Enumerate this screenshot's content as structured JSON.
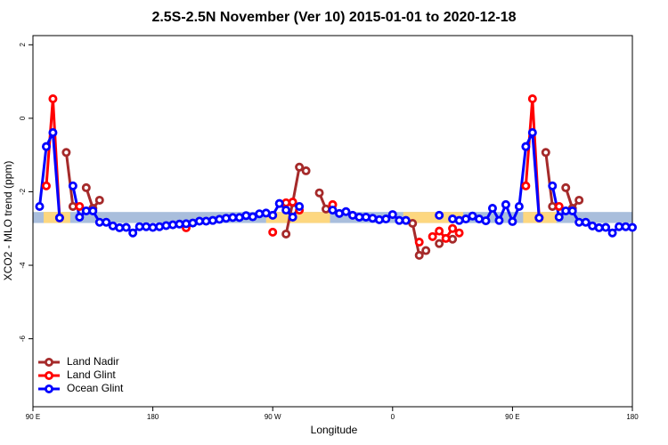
{
  "chart_data": {
    "type": "line",
    "title": "2.5S-2.5N November (Ver 10)   2015-01-01 to 2020-12-18",
    "x_label": "Longitude",
    "y_label": "XCO2 - MLO trend (ppm)",
    "xlim": [
      90,
      540
    ],
    "ylim": [
      -7.85,
      2.25
    ],
    "xticks": [
      {
        "value": 90,
        "label": "90 E"
      },
      180,
      {
        "value": 270,
        "label": "90 W"
      },
      {
        "value": 360,
        "label": "0"
      },
      {
        "value": 450,
        "label": "90 E"
      },
      {
        "value": 540,
        "label": "180"
      }
    ],
    "yticks": [
      2,
      0,
      -2,
      -4,
      -6
    ],
    "legend": "bottom-left",
    "band": {
      "range": [
        -2.55,
        -2.85
      ],
      "color": "#a9bedc",
      "highlight_color": "#fdd77f",
      "highlights": [
        [
          98,
          118
        ],
        [
          265,
          313
        ],
        [
          368,
          413
        ],
        [
          458,
          483
        ]
      ]
    },
    "x": [
      95,
      100,
      105,
      110,
      115,
      120,
      125,
      130,
      135,
      140,
      145,
      150,
      155,
      160,
      165,
      170,
      175,
      180,
      185,
      190,
      195,
      200,
      205,
      210,
      215,
      220,
      225,
      230,
      235,
      240,
      245,
      250,
      255,
      260,
      265,
      270,
      275,
      280,
      285,
      290,
      295,
      300,
      305,
      310,
      315,
      320,
      325,
      330,
      335,
      340,
      345,
      350,
      355,
      360,
      365,
      370,
      375,
      380,
      385,
      390,
      395,
      400,
      405,
      410,
      415,
      420,
      425,
      430,
      435,
      440,
      445,
      450,
      455,
      460,
      465,
      470,
      475,
      480,
      485,
      490,
      495,
      500,
      505,
      510,
      515,
      520,
      525,
      530,
      535,
      540
    ],
    "series": [
      {
        "name": "Land Nadir",
        "color": "#a52a2a",
        "values": [
          null,
          null,
          null,
          null,
          -0.93,
          -2.4,
          null,
          -1.89,
          -2.45,
          -2.23,
          null,
          null,
          null,
          null,
          null,
          null,
          null,
          null,
          null,
          null,
          null,
          null,
          null,
          null,
          null,
          null,
          null,
          null,
          null,
          null,
          null,
          null,
          null,
          null,
          null,
          null,
          null,
          -3.15,
          -2.3,
          -1.33,
          -1.43,
          null,
          -2.03,
          -2.47,
          null,
          null,
          null,
          null,
          null,
          null,
          null,
          null,
          null,
          null,
          null,
          null,
          -2.86,
          -3.73,
          -3.6,
          null,
          -3.41,
          null,
          -3.29,
          null,
          null,
          null,
          null,
          null,
          null,
          null,
          null,
          null,
          null,
          null,
          null,
          null,
          -0.93,
          -2.4,
          null,
          -1.89,
          -2.45,
          -2.23,
          null,
          null,
          null,
          null,
          null,
          null,
          null,
          null
        ]
      },
      {
        "name": "Land Glint",
        "color": "#ff0000",
        "values": [
          null,
          -1.84,
          0.53,
          -2.71,
          null,
          null,
          -2.4,
          null,
          null,
          null,
          null,
          null,
          null,
          null,
          null,
          null,
          null,
          null,
          null,
          null,
          null,
          null,
          -2.98,
          null,
          null,
          null,
          null,
          null,
          null,
          null,
          null,
          null,
          null,
          null,
          null,
          -3.1,
          null,
          -2.3,
          -2.28,
          -2.5,
          null,
          null,
          null,
          null,
          -2.35,
          null,
          null,
          null,
          null,
          null,
          null,
          null,
          null,
          null,
          null,
          null,
          null,
          -3.37,
          null,
          -3.22,
          -3.07,
          -3.27,
          -3.0,
          -3.12,
          null,
          null,
          null,
          null,
          null,
          null,
          null,
          null,
          null,
          -1.84,
          0.53,
          -2.71,
          null,
          null,
          -2.4,
          null,
          null,
          null,
          null,
          null,
          null,
          null,
          null,
          null,
          null,
          null
        ]
      },
      {
        "name": "Ocean Glint",
        "color": "#0000ff",
        "values": [
          -2.4,
          -0.77,
          -0.39,
          -2.71,
          null,
          -1.84,
          -2.69,
          -2.52,
          -2.52,
          -2.83,
          -2.83,
          -2.93,
          -2.98,
          -2.97,
          -3.12,
          -2.95,
          -2.95,
          -2.97,
          -2.95,
          -2.92,
          -2.9,
          -2.88,
          -2.87,
          -2.85,
          -2.8,
          -2.8,
          -2.78,
          -2.75,
          -2.72,
          -2.7,
          -2.7,
          -2.65,
          -2.68,
          -2.6,
          -2.58,
          -2.64,
          -2.32,
          -2.5,
          -2.69,
          -2.4,
          null,
          null,
          null,
          null,
          -2.5,
          -2.59,
          -2.54,
          -2.64,
          -2.69,
          -2.69,
          -2.72,
          -2.76,
          -2.74,
          -2.62,
          -2.78,
          -2.78,
          null,
          null,
          null,
          null,
          -2.64,
          null,
          -2.74,
          -2.78,
          -2.74,
          -2.66,
          -2.74,
          -2.79,
          -2.45,
          -2.78,
          -2.35,
          -2.81,
          -2.4,
          -0.77,
          -0.39,
          -2.71,
          null,
          -1.84,
          -2.69,
          -2.52,
          -2.52,
          -2.83,
          -2.83,
          -2.93,
          -2.98,
          -2.97,
          -3.12,
          -2.95,
          -2.95,
          -2.97
        ]
      }
    ]
  }
}
